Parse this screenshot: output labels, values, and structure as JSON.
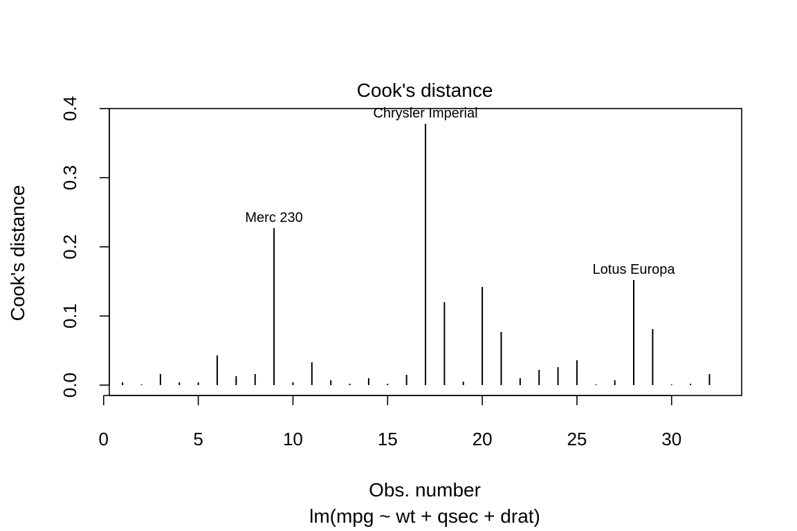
{
  "chart_data": {
    "type": "bar",
    "title": "Cook's distance",
    "xlabel": "Obs. number",
    "ylabel": "Cook's distance",
    "subtitle": "lm(mpg ~ wt + qsec + drat)",
    "xlim": [
      0.3,
      33.7
    ],
    "ylim": [
      -0.015,
      0.4
    ],
    "x_ticks": [
      0,
      5,
      10,
      15,
      20,
      25,
      30
    ],
    "y_ticks": [
      0.0,
      0.1,
      0.2,
      0.3,
      0.4
    ],
    "x_tick_labels": [
      "0",
      "5",
      "10",
      "15",
      "20",
      "25",
      "30"
    ],
    "y_tick_labels": [
      "0.0",
      "0.1",
      "0.2",
      "0.3",
      "0.4"
    ],
    "x": [
      1,
      2,
      3,
      4,
      5,
      6,
      7,
      8,
      9,
      10,
      11,
      12,
      13,
      14,
      15,
      16,
      17,
      18,
      19,
      20,
      21,
      22,
      23,
      24,
      25,
      26,
      27,
      28,
      29,
      30,
      31,
      32
    ],
    "values": [
      0.004,
      0.001,
      0.016,
      0.004,
      0.004,
      0.043,
      0.013,
      0.016,
      0.227,
      0.004,
      0.033,
      0.007,
      0.002,
      0.01,
      0.002,
      0.015,
      0.378,
      0.12,
      0.005,
      0.142,
      0.077,
      0.01,
      0.022,
      0.026,
      0.036,
      0.001,
      0.007,
      0.152,
      0.081,
      0.001,
      0.002,
      0.016
    ],
    "annotations": [
      {
        "x": 9,
        "label": "Merc 230"
      },
      {
        "x": 17,
        "label": "Chrysler Imperial"
      },
      {
        "x": 28,
        "label": "Lotus Europa"
      }
    ],
    "grid": false,
    "legend": "none"
  }
}
